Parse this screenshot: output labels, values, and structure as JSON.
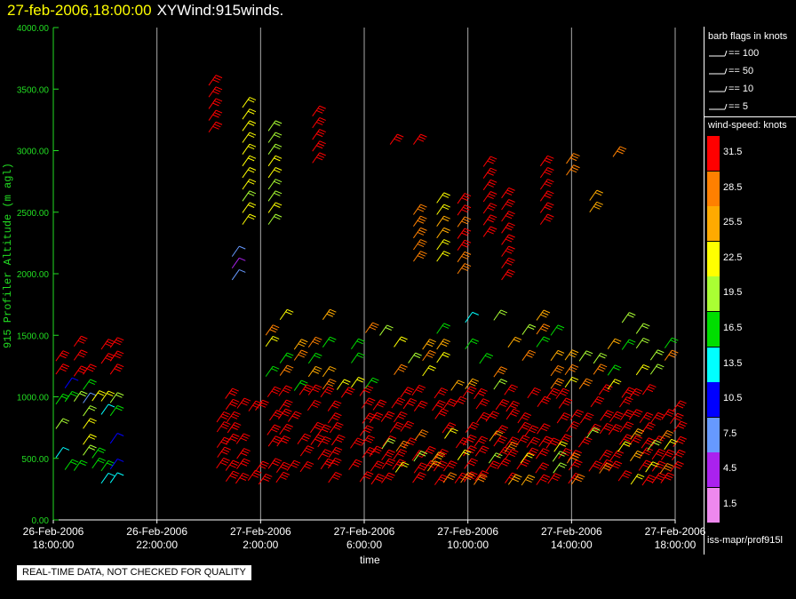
{
  "header": {
    "date": "27-feb-2006,18:00:00",
    "name": "XYWind:915winds."
  },
  "notice": "REAL-TIME DATA, NOT CHECKED FOR QUALITY",
  "legend": {
    "flags_title": "barb flags in knots",
    "flags": [
      "== 100",
      "== 50",
      "== 10",
      "== 5"
    ],
    "speed_title": "wind-speed: knots",
    "scale": [
      {
        "label": "31.5",
        "color": "#ff0000"
      },
      {
        "label": "28.5",
        "color": "#ff8000"
      },
      {
        "label": "25.5",
        "color": "#ffaa00"
      },
      {
        "label": "22.5",
        "color": "#ffff00"
      },
      {
        "label": "19.5",
        "color": "#aaff33"
      },
      {
        "label": "16.5",
        "color": "#00dd00"
      },
      {
        "label": "13.5",
        "color": "#00ffff"
      },
      {
        "label": "10.5",
        "color": "#0000ff"
      },
      {
        "label": "7.5",
        "color": "#6699ff"
      },
      {
        "label": "4.5",
        "color": "#aa22ee"
      },
      {
        "label": "1.5",
        "color": "#ee88ee"
      }
    ],
    "source": "iss-mapr/prof915l"
  },
  "chart_data": {
    "type": "scatter",
    "xlabel": "time",
    "ylabel": "915 Profiler Altitude (m agl)",
    "ylim": [
      0,
      4000
    ],
    "xlim_hours": [
      0,
      24
    ],
    "y_ticks": [
      "0.00",
      "500.00",
      "1000.00",
      "1500.00",
      "2000.00",
      "2500.00",
      "3000.00",
      "3500.00",
      "4000.00"
    ],
    "x_ticks": [
      {
        "date": "26-Feb-2006",
        "time": "18:00:00"
      },
      {
        "date": "26-Feb-2006",
        "time": "22:00:00"
      },
      {
        "date": "27-Feb-2006",
        "time": "2:00:00"
      },
      {
        "date": "27-Feb-2006",
        "time": "6:00:00"
      },
      {
        "date": "27-Feb-2006",
        "time": "10:00:00"
      },
      {
        "date": "27-Feb-2006",
        "time": "14:00:00"
      },
      {
        "date": "27-Feb-2006",
        "time": "18:00:00"
      }
    ],
    "grid": true,
    "series": [
      {
        "level": "low",
        "color": "#ff0000",
        "t": [
          6.2,
          7.0,
          7.8,
          8.6,
          9.4,
          10.2,
          11.0,
          12.0,
          12.8,
          13.6,
          14.4,
          15.2,
          16.0,
          16.8,
          17.6,
          18.4,
          19.2,
          20.0,
          20.8,
          21.6,
          22.4,
          23.2,
          24.0
        ],
        "z": [
          250,
          1000
        ],
        "speed_knots": 33
      },
      {
        "level": "mid",
        "color": "#ff8000",
        "t": [
          13.2,
          14.0,
          14.8,
          15.6,
          16.4,
          18.0,
          19.6,
          21.2
        ],
        "z": [
          300,
          700
        ],
        "speed_knots": 28
      },
      {
        "level": "upper",
        "color": "#ffff00",
        "t": [
          6.0,
          7.3,
          8.2
        ],
        "z": [
          2400,
          2950
        ],
        "speed_knots": 22
      }
    ]
  }
}
